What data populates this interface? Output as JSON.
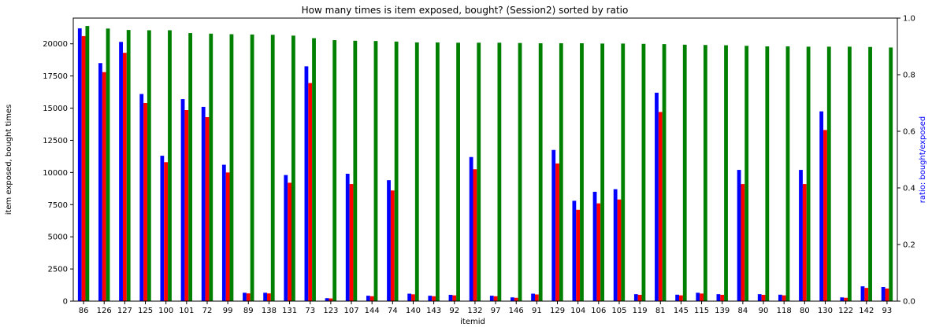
{
  "chart_data": {
    "type": "bar",
    "title": "How many times is item exposed, bought? (Session2) sorted by ratio",
    "xlabel": "itemid",
    "ylabel": "item exposed, bought times",
    "y2label": "ratio: bought/exposed",
    "ylim": [
      0,
      22000
    ],
    "y2lim": [
      0,
      1.0
    ],
    "yticks": [
      0,
      2500,
      5000,
      7500,
      10000,
      12500,
      15000,
      17500,
      20000
    ],
    "y2ticks": [
      0.0,
      0.2,
      0.4,
      0.6,
      0.8,
      1.0
    ],
    "y2tick_labels": [
      "0.0",
      "0.2",
      "0.4",
      "0.6",
      "0.8",
      "1.0"
    ],
    "grid": false,
    "categories": [
      "86",
      "126",
      "127",
      "125",
      "100",
      "101",
      "72",
      "99",
      "89",
      "138",
      "131",
      "73",
      "123",
      "107",
      "144",
      "74",
      "140",
      "143",
      "92",
      "132",
      "97",
      "146",
      "91",
      "129",
      "104",
      "106",
      "105",
      "119",
      "81",
      "145",
      "115",
      "139",
      "84",
      "90",
      "118",
      "80",
      "130",
      "122",
      "142",
      "93"
    ],
    "series": [
      {
        "color": "#0000ff",
        "axis": "left",
        "values": [
          21200,
          18500,
          20150,
          16100,
          11300,
          15700,
          15100,
          10600,
          650,
          650,
          9800,
          18250,
          230,
          9900,
          420,
          9400,
          580,
          420,
          490,
          11200,
          420,
          290,
          580,
          11750,
          7800,
          8500,
          8700,
          540,
          16200,
          500,
          650,
          540,
          10200,
          540,
          500,
          10200,
          14750,
          290,
          1150,
          1100
        ]
      },
      {
        "color": "#ff0000",
        "axis": "left",
        "values": [
          20600,
          17800,
          19300,
          15400,
          10800,
          14850,
          14300,
          10000,
          600,
          600,
          9200,
          16950,
          210,
          9100,
          380,
          8600,
          530,
          380,
          450,
          10250,
          380,
          260,
          520,
          10700,
          7100,
          7600,
          7900,
          490,
          14700,
          450,
          590,
          490,
          9100,
          490,
          450,
          9100,
          13300,
          260,
          1030,
          980
        ]
      },
      {
        "color": "#008000",
        "axis": "right",
        "values": [
          0.972,
          0.963,
          0.958,
          0.957,
          0.957,
          0.947,
          0.945,
          0.943,
          0.942,
          0.941,
          0.938,
          0.929,
          0.922,
          0.92,
          0.919,
          0.917,
          0.914,
          0.914,
          0.913,
          0.913,
          0.913,
          0.912,
          0.911,
          0.911,
          0.911,
          0.91,
          0.91,
          0.909,
          0.908,
          0.906,
          0.905,
          0.904,
          0.902,
          0.9,
          0.9,
          0.899,
          0.899,
          0.899,
          0.898,
          0.896
        ]
      }
    ]
  }
}
